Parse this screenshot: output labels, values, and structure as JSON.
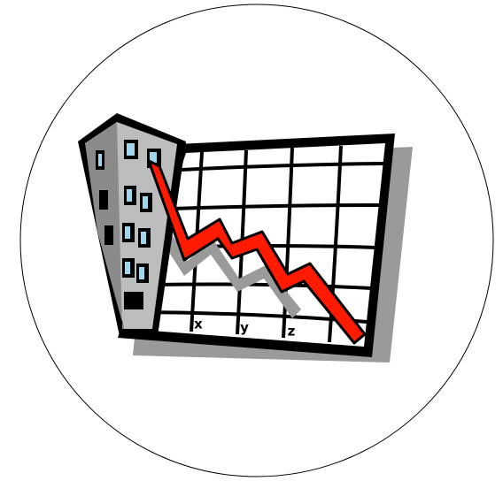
{
  "axis_labels": [
    "x",
    "y",
    "z"
  ]
}
